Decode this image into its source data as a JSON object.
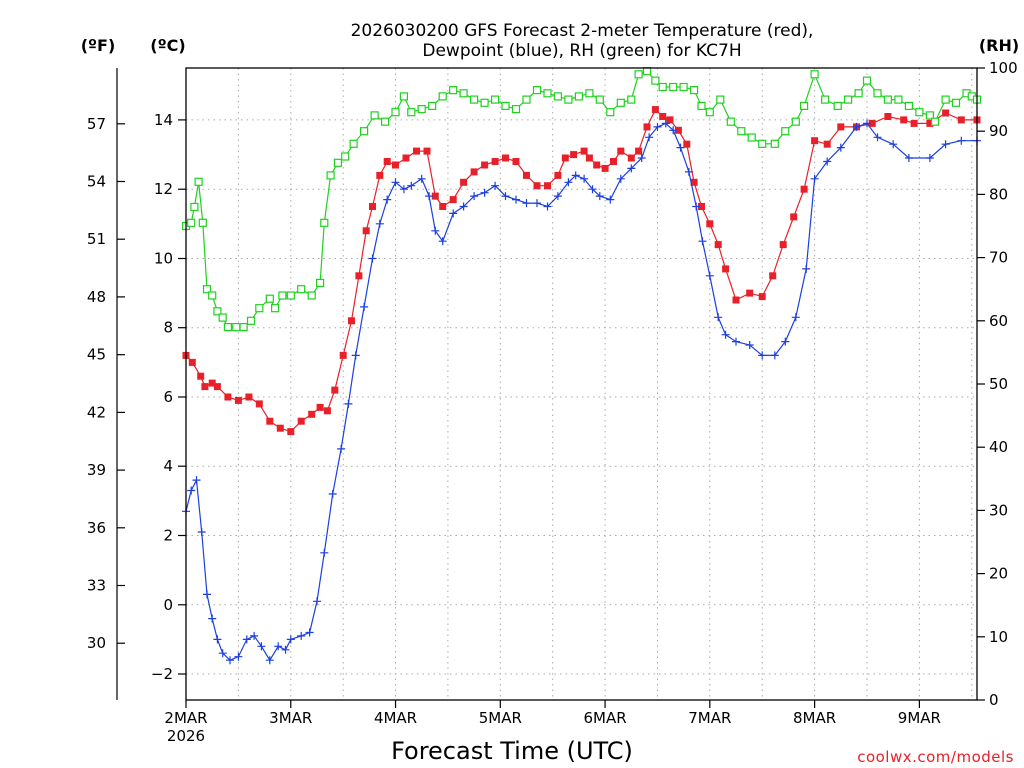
{
  "chart_data": {
    "type": "line",
    "title": "2026030200 GFS Forecast 2-meter Temperature (red),",
    "subtitle": "Dewpoint (blue), RH (green) for KC7H",
    "xlabel": "Forecast Time (UTC)",
    "credit": "coolwx.com/models",
    "units": {
      "fahrenheit": "(ºF)",
      "celsius": "(ºC)",
      "rh": "(RH)"
    },
    "x_range_days": [
      0,
      7.55
    ],
    "x_ticks": [
      {
        "day": 0,
        "label": "2MAR",
        "sub": "2026"
      },
      {
        "day": 1,
        "label": "3MAR"
      },
      {
        "day": 2,
        "label": "4MAR"
      },
      {
        "day": 3,
        "label": "5MAR"
      },
      {
        "day": 4,
        "label": "6MAR"
      },
      {
        "day": 5,
        "label": "7MAR"
      },
      {
        "day": 6,
        "label": "8MAR"
      },
      {
        "day": 7,
        "label": "9MAR"
      }
    ],
    "y_celsius": {
      "range": [
        -2.75,
        15.5
      ],
      "ticks": [
        -2,
        0,
        2,
        4,
        6,
        8,
        10,
        12,
        14
      ],
      "tick_labels": [
        "−2",
        "0",
        "2",
        "4",
        "6",
        "8",
        "10",
        "12",
        "14"
      ]
    },
    "y_fahrenheit": {
      "ticks": [
        30,
        33,
        36,
        39,
        42,
        45,
        48,
        51,
        54,
        57
      ],
      "tick_labels": [
        "30",
        "33",
        "36",
        "39",
        "42",
        "45",
        "48",
        "51",
        "54",
        "57"
      ]
    },
    "y_rh": {
      "range": [
        0,
        100
      ],
      "ticks": [
        0,
        10,
        20,
        30,
        40,
        50,
        60,
        70,
        80,
        90,
        100
      ],
      "tick_labels": [
        "0",
        "10",
        "20",
        "30",
        "40",
        "50",
        "60",
        "70",
        "80",
        "90",
        "100"
      ]
    },
    "series": [
      {
        "name": "2-meter Temperature",
        "color": "#e8202a",
        "marker": "square-filled",
        "axis": "celsius",
        "points": [
          [
            0,
            7.2
          ],
          [
            0.06,
            7
          ],
          [
            0.14,
            6.6
          ],
          [
            0.18,
            6.3
          ],
          [
            0.25,
            6.4
          ],
          [
            0.3,
            6.3
          ],
          [
            0.4,
            6
          ],
          [
            0.5,
            5.9
          ],
          [
            0.6,
            6
          ],
          [
            0.7,
            5.8
          ],
          [
            0.8,
            5.3
          ],
          [
            0.9,
            5.1
          ],
          [
            1.0,
            5
          ],
          [
            1.1,
            5.3
          ],
          [
            1.2,
            5.5
          ],
          [
            1.28,
            5.7
          ],
          [
            1.35,
            5.6
          ],
          [
            1.42,
            6.2
          ],
          [
            1.5,
            7.2
          ],
          [
            1.58,
            8.2
          ],
          [
            1.65,
            9.5
          ],
          [
            1.72,
            10.8
          ],
          [
            1.78,
            11.5
          ],
          [
            1.85,
            12.4
          ],
          [
            1.92,
            12.8
          ],
          [
            2.0,
            12.7
          ],
          [
            2.1,
            12.9
          ],
          [
            2.2,
            13.1
          ],
          [
            2.3,
            13.1
          ],
          [
            2.38,
            11.8
          ],
          [
            2.45,
            11.5
          ],
          [
            2.55,
            11.7
          ],
          [
            2.65,
            12.2
          ],
          [
            2.75,
            12.5
          ],
          [
            2.85,
            12.7
          ],
          [
            2.95,
            12.8
          ],
          [
            3.05,
            12.9
          ],
          [
            3.15,
            12.8
          ],
          [
            3.25,
            12.4
          ],
          [
            3.35,
            12.1
          ],
          [
            3.45,
            12.1
          ],
          [
            3.55,
            12.4
          ],
          [
            3.62,
            12.9
          ],
          [
            3.7,
            13
          ],
          [
            3.8,
            13.1
          ],
          [
            3.85,
            12.9
          ],
          [
            3.92,
            12.7
          ],
          [
            4.0,
            12.6
          ],
          [
            4.08,
            12.8
          ],
          [
            4.15,
            13.1
          ],
          [
            4.25,
            12.9
          ],
          [
            4.32,
            13.1
          ],
          [
            4.4,
            13.8
          ],
          [
            4.48,
            14.3
          ],
          [
            4.55,
            14.1
          ],
          [
            4.62,
            14
          ],
          [
            4.7,
            13.7
          ],
          [
            4.78,
            13.3
          ],
          [
            4.85,
            12.2
          ],
          [
            4.92,
            11.5
          ],
          [
            5.0,
            11
          ],
          [
            5.08,
            10.4
          ],
          [
            5.15,
            9.7
          ],
          [
            5.25,
            8.8
          ],
          [
            5.38,
            9
          ],
          [
            5.5,
            8.9
          ],
          [
            5.6,
            9.5
          ],
          [
            5.7,
            10.4
          ],
          [
            5.8,
            11.2
          ],
          [
            5.9,
            12
          ],
          [
            6.0,
            13.4
          ],
          [
            6.12,
            13.3
          ],
          [
            6.25,
            13.8
          ],
          [
            6.4,
            13.8
          ],
          [
            6.55,
            13.9
          ],
          [
            6.7,
            14.1
          ],
          [
            6.85,
            14
          ],
          [
            6.95,
            13.9
          ],
          [
            7.1,
            13.9
          ],
          [
            7.25,
            14.2
          ],
          [
            7.4,
            14
          ],
          [
            7.55,
            14
          ]
        ]
      },
      {
        "name": "Dewpoint",
        "color": "#1c3fe0",
        "marker": "plus",
        "axis": "celsius",
        "points": [
          [
            0,
            2.7
          ],
          [
            0.05,
            3.3
          ],
          [
            0.1,
            3.6
          ],
          [
            0.15,
            2.1
          ],
          [
            0.2,
            0.3
          ],
          [
            0.25,
            -0.4
          ],
          [
            0.3,
            -1
          ],
          [
            0.35,
            -1.4
          ],
          [
            0.42,
            -1.6
          ],
          [
            0.5,
            -1.5
          ],
          [
            0.58,
            -1
          ],
          [
            0.65,
            -0.9
          ],
          [
            0.72,
            -1.2
          ],
          [
            0.8,
            -1.6
          ],
          [
            0.88,
            -1.2
          ],
          [
            0.95,
            -1.3
          ],
          [
            1.0,
            -1
          ],
          [
            1.1,
            -0.9
          ],
          [
            1.18,
            -0.8
          ],
          [
            1.25,
            0.1
          ],
          [
            1.32,
            1.5
          ],
          [
            1.4,
            3.2
          ],
          [
            1.48,
            4.5
          ],
          [
            1.55,
            5.8
          ],
          [
            1.62,
            7.2
          ],
          [
            1.7,
            8.6
          ],
          [
            1.78,
            10
          ],
          [
            1.85,
            11
          ],
          [
            1.92,
            11.7
          ],
          [
            2.0,
            12.2
          ],
          [
            2.08,
            12
          ],
          [
            2.15,
            12.1
          ],
          [
            2.25,
            12.3
          ],
          [
            2.32,
            11.8
          ],
          [
            2.38,
            10.8
          ],
          [
            2.45,
            10.5
          ],
          [
            2.55,
            11.3
          ],
          [
            2.65,
            11.5
          ],
          [
            2.75,
            11.8
          ],
          [
            2.85,
            11.9
          ],
          [
            2.95,
            12.1
          ],
          [
            3.05,
            11.8
          ],
          [
            3.15,
            11.7
          ],
          [
            3.25,
            11.6
          ],
          [
            3.35,
            11.6
          ],
          [
            3.45,
            11.5
          ],
          [
            3.55,
            11.8
          ],
          [
            3.65,
            12.2
          ],
          [
            3.72,
            12.4
          ],
          [
            3.8,
            12.3
          ],
          [
            3.88,
            12
          ],
          [
            3.95,
            11.8
          ],
          [
            4.05,
            11.7
          ],
          [
            4.15,
            12.3
          ],
          [
            4.25,
            12.6
          ],
          [
            4.35,
            12.9
          ],
          [
            4.42,
            13.5
          ],
          [
            4.5,
            13.8
          ],
          [
            4.58,
            13.9
          ],
          [
            4.65,
            13.7
          ],
          [
            4.72,
            13.2
          ],
          [
            4.8,
            12.5
          ],
          [
            4.87,
            11.5
          ],
          [
            4.93,
            10.5
          ],
          [
            5.0,
            9.5
          ],
          [
            5.08,
            8.3
          ],
          [
            5.15,
            7.8
          ],
          [
            5.25,
            7.6
          ],
          [
            5.38,
            7.5
          ],
          [
            5.5,
            7.2
          ],
          [
            5.62,
            7.2
          ],
          [
            5.72,
            7.6
          ],
          [
            5.82,
            8.3
          ],
          [
            5.92,
            9.7
          ],
          [
            6.0,
            12.3
          ],
          [
            6.12,
            12.8
          ],
          [
            6.25,
            13.2
          ],
          [
            6.4,
            13.8
          ],
          [
            6.5,
            13.9
          ],
          [
            6.6,
            13.5
          ],
          [
            6.75,
            13.3
          ],
          [
            6.9,
            12.9
          ],
          [
            7.1,
            12.9
          ],
          [
            7.25,
            13.3
          ],
          [
            7.4,
            13.4
          ],
          [
            7.55,
            13.4
          ]
        ]
      },
      {
        "name": "RH",
        "color": "#1ed21e",
        "marker": "square-open",
        "axis": "rh",
        "points": [
          [
            0,
            75
          ],
          [
            0.05,
            75.5
          ],
          [
            0.08,
            78
          ],
          [
            0.12,
            82
          ],
          [
            0.16,
            75.5
          ],
          [
            0.2,
            65
          ],
          [
            0.25,
            64
          ],
          [
            0.3,
            61.5
          ],
          [
            0.35,
            60.5
          ],
          [
            0.4,
            59
          ],
          [
            0.48,
            59
          ],
          [
            0.55,
            59
          ],
          [
            0.62,
            60
          ],
          [
            0.7,
            62
          ],
          [
            0.8,
            63.5
          ],
          [
            0.85,
            62
          ],
          [
            0.92,
            64
          ],
          [
            1.0,
            64
          ],
          [
            1.1,
            65
          ],
          [
            1.2,
            64
          ],
          [
            1.28,
            66
          ],
          [
            1.32,
            75.5
          ],
          [
            1.38,
            83
          ],
          [
            1.45,
            85
          ],
          [
            1.52,
            86
          ],
          [
            1.6,
            88
          ],
          [
            1.7,
            90
          ],
          [
            1.8,
            92.5
          ],
          [
            1.9,
            91.5
          ],
          [
            2.0,
            93
          ],
          [
            2.08,
            95.5
          ],
          [
            2.15,
            93
          ],
          [
            2.25,
            93.5
          ],
          [
            2.35,
            94
          ],
          [
            2.45,
            95.5
          ],
          [
            2.55,
            96.5
          ],
          [
            2.65,
            96
          ],
          [
            2.75,
            95
          ],
          [
            2.85,
            94.5
          ],
          [
            2.95,
            95
          ],
          [
            3.05,
            94
          ],
          [
            3.15,
            93.5
          ],
          [
            3.25,
            95
          ],
          [
            3.35,
            96.5
          ],
          [
            3.45,
            96
          ],
          [
            3.55,
            95.5
          ],
          [
            3.65,
            95
          ],
          [
            3.75,
            95.5
          ],
          [
            3.85,
            96
          ],
          [
            3.95,
            95
          ],
          [
            4.05,
            93
          ],
          [
            4.15,
            94.5
          ],
          [
            4.25,
            95
          ],
          [
            4.32,
            99
          ],
          [
            4.4,
            99.5
          ],
          [
            4.48,
            98
          ],
          [
            4.55,
            97
          ],
          [
            4.65,
            97
          ],
          [
            4.75,
            97
          ],
          [
            4.85,
            96.5
          ],
          [
            4.92,
            94
          ],
          [
            5.0,
            93
          ],
          [
            5.1,
            95
          ],
          [
            5.2,
            91.5
          ],
          [
            5.3,
            90
          ],
          [
            5.4,
            89
          ],
          [
            5.5,
            88
          ],
          [
            5.62,
            88
          ],
          [
            5.72,
            90
          ],
          [
            5.82,
            91.5
          ],
          [
            5.9,
            94
          ],
          [
            6.0,
            99
          ],
          [
            6.1,
            95
          ],
          [
            6.22,
            94
          ],
          [
            6.32,
            95
          ],
          [
            6.42,
            96
          ],
          [
            6.5,
            98
          ],
          [
            6.6,
            96
          ],
          [
            6.7,
            95
          ],
          [
            6.8,
            95
          ],
          [
            6.9,
            94
          ],
          [
            7.0,
            93
          ],
          [
            7.1,
            92.5
          ],
          [
            7.15,
            91.5
          ],
          [
            7.25,
            95
          ],
          [
            7.35,
            94.5
          ],
          [
            7.45,
            96
          ],
          [
            7.5,
            95.5
          ],
          [
            7.55,
            95
          ]
        ]
      }
    ]
  }
}
